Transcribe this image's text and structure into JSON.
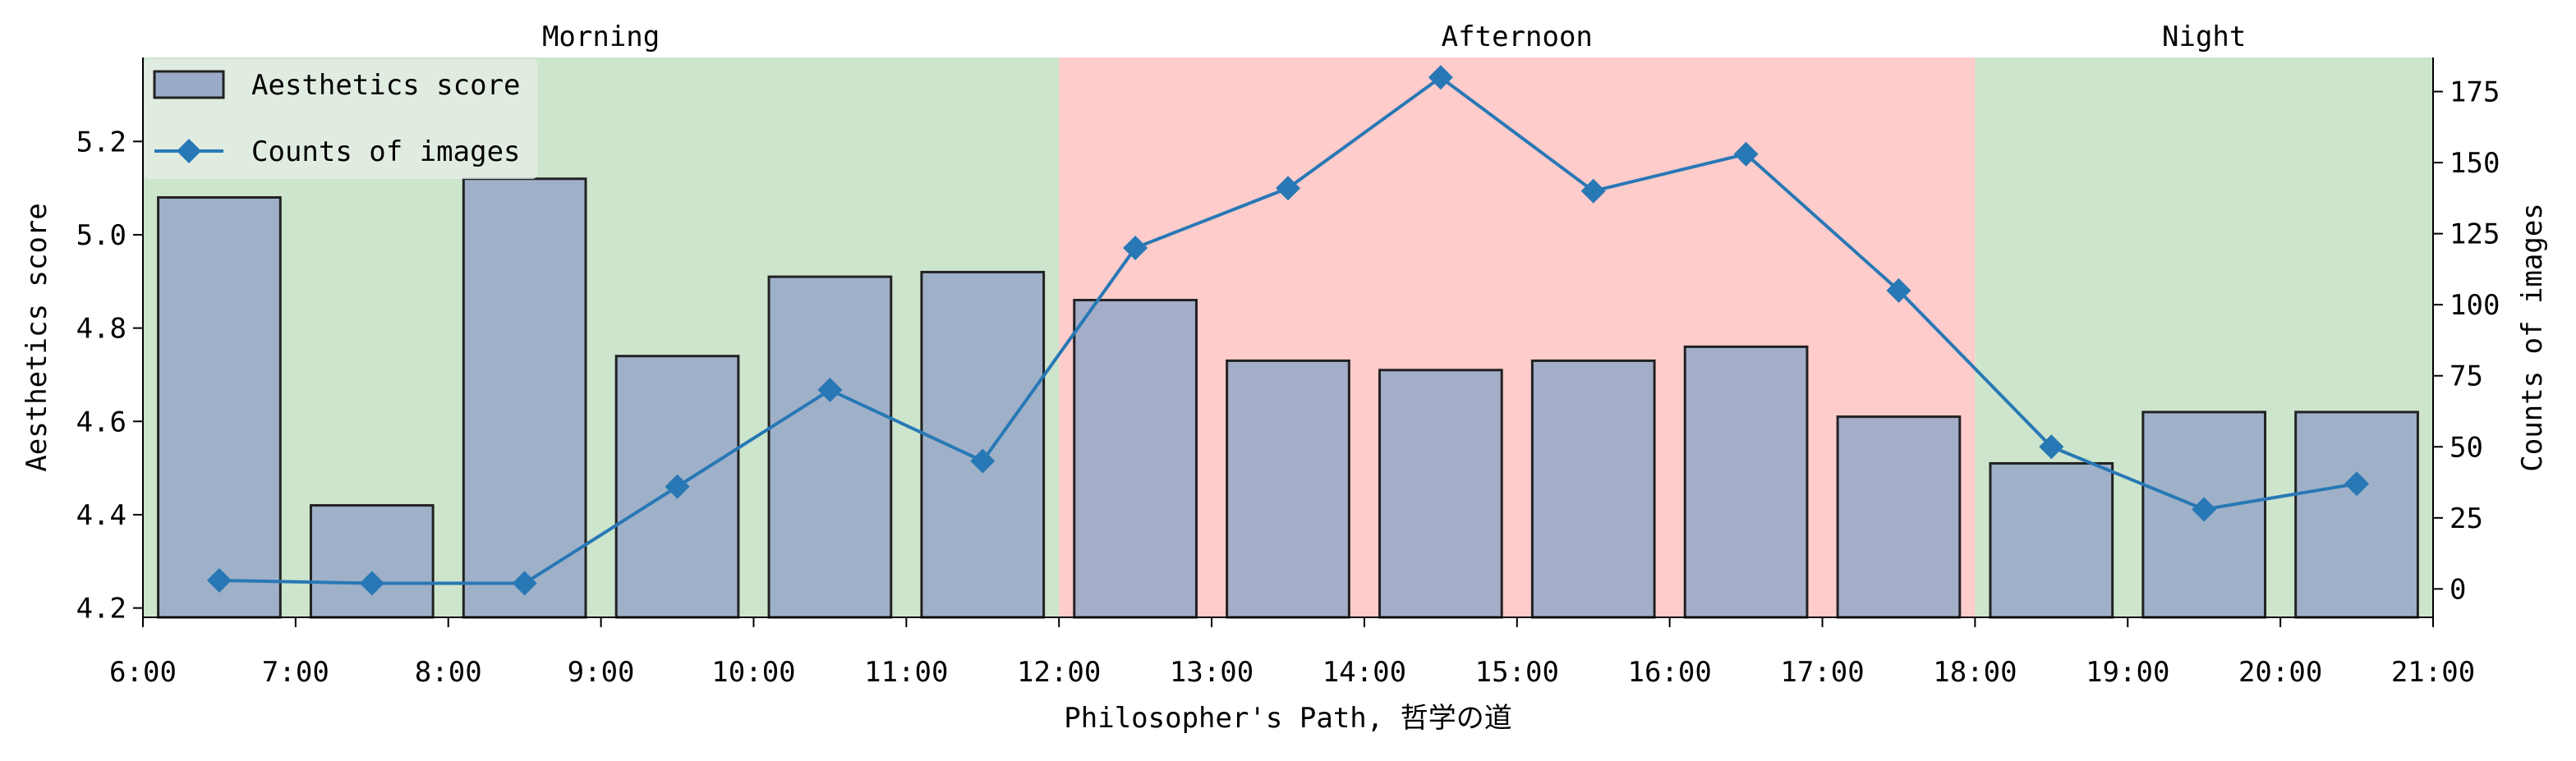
{
  "chart_data": {
    "type": "bar",
    "xlabel": "Philosopher's Path, 哲学の道",
    "ylabel": "Aesthetics score",
    "y2label": "Counts of images",
    "x_ticks": [
      "6:00",
      "7:00",
      "8:00",
      "9:00",
      "10:00",
      "11:00",
      "12:00",
      "13:00",
      "14:00",
      "15:00",
      "16:00",
      "17:00",
      "18:00",
      "19:00",
      "20:00",
      "21:00"
    ],
    "xlim": [
      6,
      21
    ],
    "ylim": [
      4.18,
      5.38
    ],
    "y_ticks": [
      4.2,
      4.4,
      4.6,
      4.8,
      5.0,
      5.2
    ],
    "y_tick_labels": [
      "4.2",
      "4.4",
      "4.6",
      "4.8",
      "5.0",
      "5.2"
    ],
    "y2lim": [
      -10,
      187
    ],
    "y2_ticks": [
      0,
      25,
      50,
      75,
      100,
      125,
      150,
      175
    ],
    "y2_tick_labels": [
      "0",
      "25",
      "50",
      "75",
      "100",
      "125",
      "150",
      "175"
    ],
    "regions": [
      {
        "label": "Morning",
        "start": 6,
        "end": 12,
        "color": "#cde5cc"
      },
      {
        "label": "Afternoon",
        "start": 12,
        "end": 18,
        "color": "#ffcccc"
      },
      {
        "label": "Night",
        "start": 18,
        "end": 21,
        "color": "#cde5cc"
      }
    ],
    "series": [
      {
        "name": "Aesthetics score",
        "kind": "bar",
        "color": "#9aabc9",
        "edge_color": "#222222",
        "x": [
          6.5,
          7.5,
          8.5,
          9.5,
          10.5,
          11.5,
          12.5,
          13.5,
          14.5,
          15.5,
          16.5,
          17.5,
          18.5,
          19.5,
          20.5
        ],
        "values": [
          5.08,
          4.42,
          5.12,
          4.74,
          4.91,
          4.92,
          4.86,
          4.73,
          4.71,
          4.73,
          4.76,
          4.61,
          4.51,
          4.62,
          4.62
        ]
      },
      {
        "name": "Counts of images",
        "kind": "line",
        "axis": "right",
        "marker": "diamond",
        "color": "#2878b5",
        "x": [
          6.5,
          7.5,
          8.5,
          9.5,
          10.5,
          11.5,
          12.5,
          13.5,
          14.5,
          15.5,
          16.5,
          17.5,
          18.5,
          19.5,
          20.5
        ],
        "values": [
          3,
          2,
          2,
          36,
          70,
          45,
          120,
          141,
          180,
          140,
          153,
          105,
          50,
          28,
          37
        ]
      }
    ],
    "legend": {
      "position": "top-left",
      "entries": [
        "Aesthetics score",
        "Counts of images"
      ]
    },
    "grid": false
  }
}
